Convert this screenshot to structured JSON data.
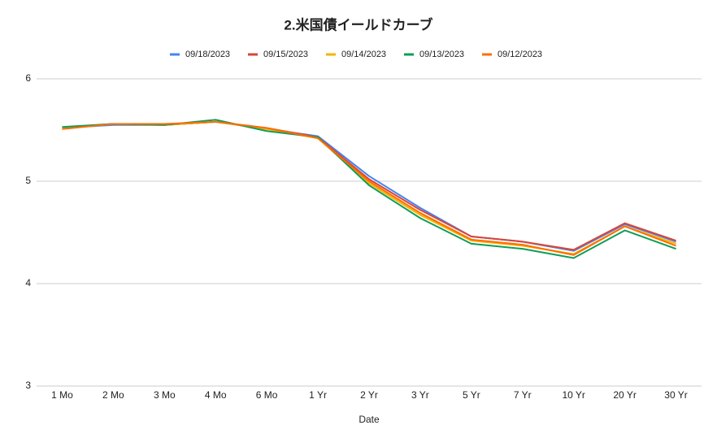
{
  "chart_data": {
    "type": "line",
    "title": "2.米国債イールドカーブ",
    "x_label": "Date",
    "categories": [
      "1 Mo",
      "2 Mo",
      "3 Mo",
      "4 Mo",
      "6 Mo",
      "1 Yr",
      "2 Yr",
      "3 Yr",
      "5 Yr",
      "7 Yr",
      "10 Yr",
      "20 Yr",
      "30 Yr"
    ],
    "series": [
      {
        "name": "09/18/2023",
        "color": "#4285f4",
        "values": [
          5.52,
          5.55,
          5.55,
          5.58,
          5.51,
          5.44,
          5.05,
          4.74,
          4.46,
          4.41,
          4.32,
          4.58,
          4.41
        ]
      },
      {
        "name": "09/15/2023",
        "color": "#db4437",
        "values": [
          5.52,
          5.56,
          5.55,
          5.58,
          5.52,
          5.43,
          5.02,
          4.72,
          4.46,
          4.41,
          4.33,
          4.59,
          4.42
        ]
      },
      {
        "name": "09/14/2023",
        "color": "#f4b400",
        "values": [
          5.52,
          5.56,
          5.55,
          5.58,
          5.51,
          5.42,
          4.98,
          4.67,
          4.42,
          4.37,
          4.29,
          4.56,
          4.39
        ]
      },
      {
        "name": "09/13/2023",
        "color": "#0f9d58",
        "values": [
          5.53,
          5.56,
          5.55,
          5.6,
          5.49,
          5.43,
          4.96,
          4.64,
          4.39,
          4.34,
          4.25,
          4.52,
          4.34
        ]
      },
      {
        "name": "09/12/2023",
        "color": "#ff6d01",
        "values": [
          5.51,
          5.56,
          5.56,
          5.58,
          5.52,
          5.42,
          5.0,
          4.69,
          4.43,
          4.38,
          4.28,
          4.56,
          4.37
        ]
      }
    ],
    "ylim": [
      3,
      6
    ],
    "yticks": [
      3,
      4,
      5,
      6
    ],
    "grid": true,
    "legend": "top"
  }
}
